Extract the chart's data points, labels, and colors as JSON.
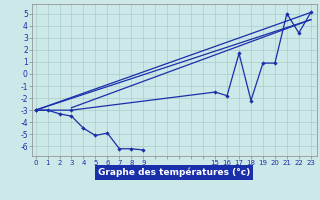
{
  "background_color": "#cce8e8",
  "grid_color": "#aacccc",
  "line_color": "#1a2faa",
  "xlabel": "Graphe des températures (°c)",
  "ylim": [
    -6.8,
    5.8
  ],
  "xlim": [
    -0.3,
    23.5
  ],
  "yticks": [
    -6,
    -5,
    -4,
    -3,
    -2,
    -1,
    0,
    1,
    2,
    3,
    4,
    5
  ],
  "xtick_positions": [
    0,
    1,
    2,
    3,
    4,
    5,
    6,
    7,
    8,
    9,
    10,
    11,
    12,
    13,
    14,
    15,
    16,
    17,
    18,
    19,
    20,
    21,
    22,
    23
  ],
  "xtick_labels": [
    "0",
    "1",
    "2",
    "3",
    "4",
    "5",
    "6",
    "7",
    "8",
    "9",
    "",
    "",
    "",
    "",
    "",
    "15",
    "16",
    "17",
    "18",
    "19",
    "20",
    "21",
    "22",
    "23"
  ],
  "series_zigzag": {
    "x": [
      0,
      1,
      2,
      3,
      4,
      5,
      6,
      7,
      8,
      9
    ],
    "y": [
      -3.0,
      -3.0,
      -3.3,
      -3.5,
      -4.5,
      -5.1,
      -4.9,
      -6.2,
      -6.2,
      -6.3
    ]
  },
  "series_curve": {
    "x": [
      0,
      3,
      15,
      16,
      17,
      18,
      19,
      20,
      21,
      22,
      23
    ],
    "y": [
      -3.0,
      -3.0,
      -1.5,
      -1.8,
      1.7,
      -2.2,
      0.9,
      0.9,
      5.0,
      3.4,
      5.1
    ]
  },
  "line_straight_1": {
    "x": [
      0,
      23
    ],
    "y": [
      -3.0,
      5.1
    ]
  },
  "line_straight_2": {
    "x": [
      0,
      23
    ],
    "y": [
      -3.0,
      4.5
    ]
  },
  "line_straight_3": {
    "x": [
      3,
      23
    ],
    "y": [
      -2.8,
      4.5
    ]
  }
}
